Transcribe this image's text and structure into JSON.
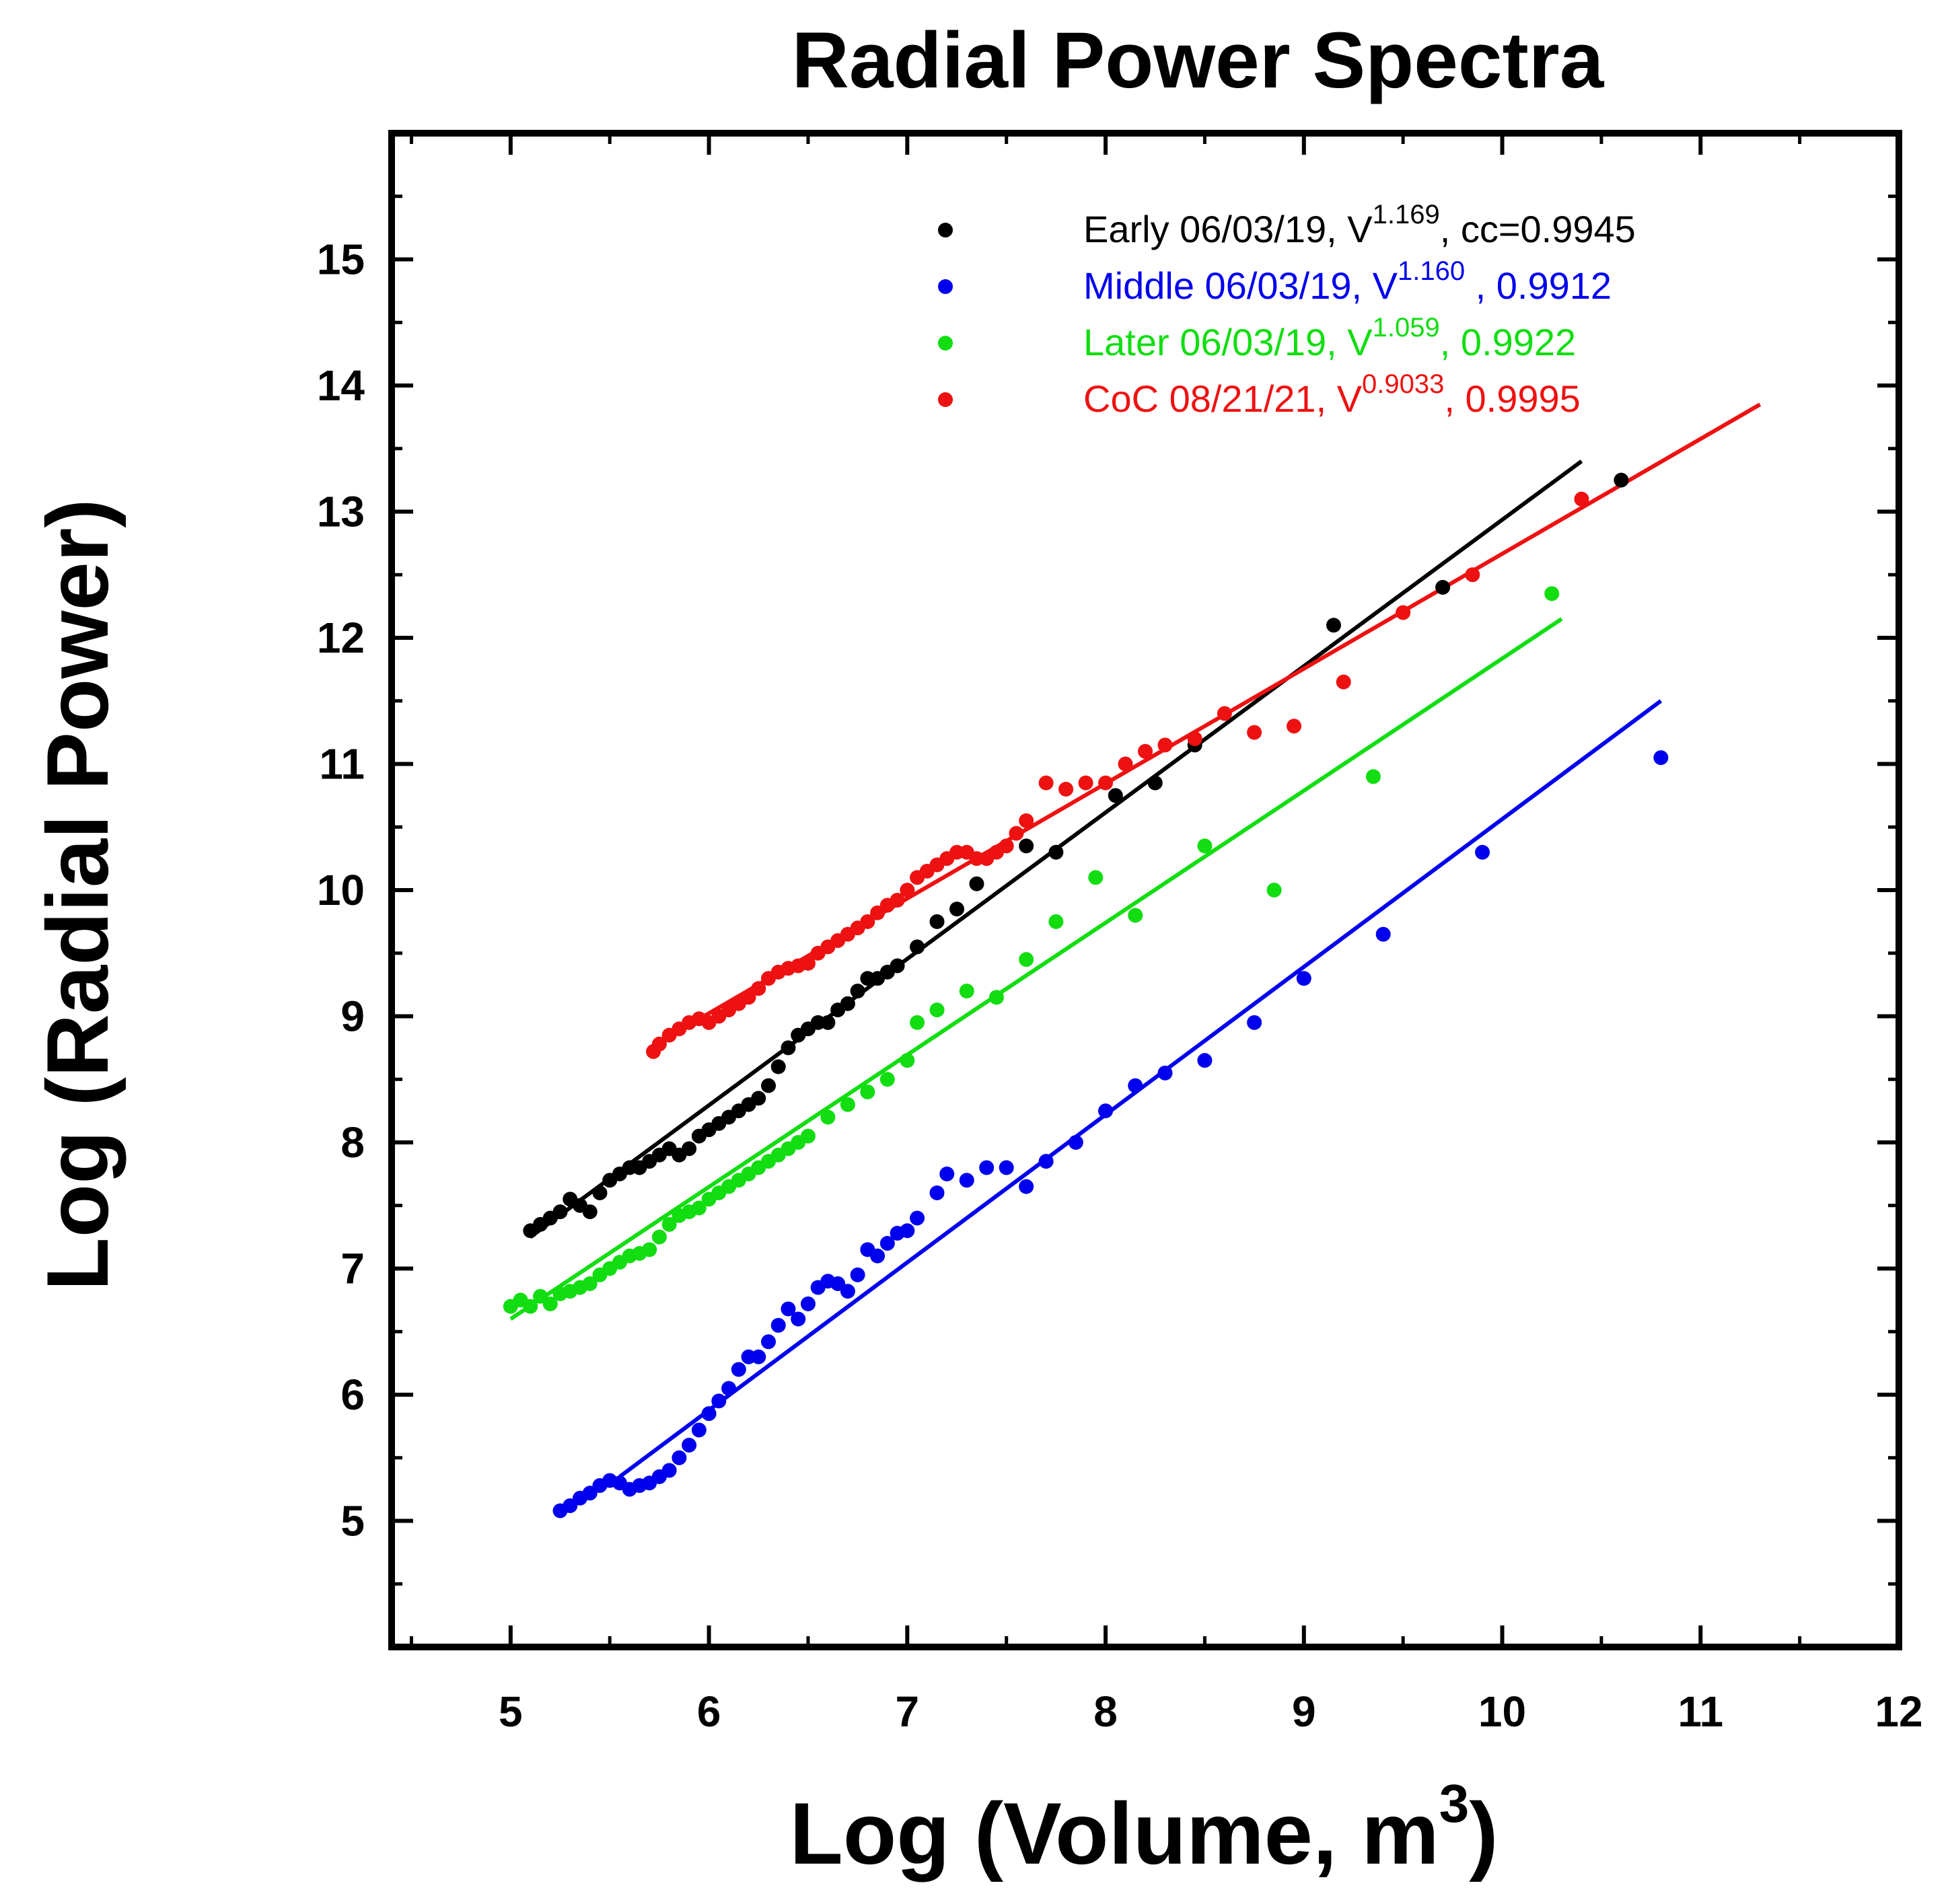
{
  "chart_data": {
    "type": "scatter",
    "title": "Radial Power Spectra",
    "xlabel": {
      "text": "Log (Volume, m",
      "sup": "3",
      "tail": ")"
    },
    "ylabel": "Log (Radial Power)",
    "xlim": [
      4.4,
      12
    ],
    "ylim": [
      4,
      16
    ],
    "x_ticks": [
      5,
      6,
      7,
      8,
      9,
      10,
      11,
      12
    ],
    "y_ticks": [
      5,
      6,
      7,
      8,
      9,
      10,
      11,
      12,
      13,
      14,
      15
    ],
    "legend_position": "top-right",
    "series": [
      {
        "name": "Early 06/03/19, V",
        "exponent": "1.169",
        "stat": ", cc=0.9945",
        "color": "#000000",
        "fit": [
          [
            5.1,
            7.25
          ],
          [
            10.4,
            13.4
          ]
        ],
        "points": [
          [
            5.1,
            7.3
          ],
          [
            5.15,
            7.35
          ],
          [
            5.2,
            7.4
          ],
          [
            5.25,
            7.45
          ],
          [
            5.3,
            7.55
          ],
          [
            5.35,
            7.5
          ],
          [
            5.4,
            7.45
          ],
          [
            5.45,
            7.6
          ],
          [
            5.5,
            7.7
          ],
          [
            5.55,
            7.75
          ],
          [
            5.6,
            7.8
          ],
          [
            5.65,
            7.8
          ],
          [
            5.7,
            7.85
          ],
          [
            5.75,
            7.9
          ],
          [
            5.8,
            7.95
          ],
          [
            5.85,
            7.9
          ],
          [
            5.9,
            7.95
          ],
          [
            5.95,
            8.05
          ],
          [
            6.0,
            8.1
          ],
          [
            6.05,
            8.15
          ],
          [
            6.1,
            8.2
          ],
          [
            6.15,
            8.25
          ],
          [
            6.2,
            8.3
          ],
          [
            6.25,
            8.35
          ],
          [
            6.3,
            8.45
          ],
          [
            6.35,
            8.6
          ],
          [
            6.4,
            8.75
          ],
          [
            6.45,
            8.85
          ],
          [
            6.5,
            8.9
          ],
          [
            6.55,
            8.95
          ],
          [
            6.6,
            8.95
          ],
          [
            6.65,
            9.05
          ],
          [
            6.7,
            9.1
          ],
          [
            6.75,
            9.2
          ],
          [
            6.8,
            9.3
          ],
          [
            6.85,
            9.3
          ],
          [
            6.9,
            9.35
          ],
          [
            6.95,
            9.4
          ],
          [
            7.05,
            9.55
          ],
          [
            7.15,
            9.75
          ],
          [
            7.25,
            9.85
          ],
          [
            7.35,
            10.05
          ],
          [
            7.6,
            10.35
          ],
          [
            7.75,
            10.3
          ],
          [
            8.05,
            10.75
          ],
          [
            8.25,
            10.85
          ],
          [
            8.45,
            11.15
          ],
          [
            9.15,
            12.1
          ],
          [
            9.7,
            12.4
          ],
          [
            10.6,
            13.25
          ]
        ]
      },
      {
        "name": "Middle 06/03/19, V",
        "exponent": "1.160",
        "stat": " ,  0.9912",
        "color": "#0000ee",
        "fit": [
          [
            5.55,
            5.35
          ],
          [
            10.8,
            11.5
          ]
        ],
        "points": [
          [
            5.25,
            5.08
          ],
          [
            5.3,
            5.12
          ],
          [
            5.35,
            5.18
          ],
          [
            5.4,
            5.22
          ],
          [
            5.45,
            5.28
          ],
          [
            5.5,
            5.32
          ],
          [
            5.55,
            5.3
          ],
          [
            5.6,
            5.25
          ],
          [
            5.65,
            5.28
          ],
          [
            5.7,
            5.3
          ],
          [
            5.75,
            5.35
          ],
          [
            5.8,
            5.4
          ],
          [
            5.85,
            5.5
          ],
          [
            5.9,
            5.6
          ],
          [
            5.95,
            5.72
          ],
          [
            6.0,
            5.85
          ],
          [
            6.05,
            5.95
          ],
          [
            6.1,
            6.05
          ],
          [
            6.15,
            6.2
          ],
          [
            6.2,
            6.3
          ],
          [
            6.25,
            6.3
          ],
          [
            6.3,
            6.42
          ],
          [
            6.35,
            6.55
          ],
          [
            6.4,
            6.68
          ],
          [
            6.45,
            6.6
          ],
          [
            6.5,
            6.72
          ],
          [
            6.55,
            6.85
          ],
          [
            6.6,
            6.9
          ],
          [
            6.65,
            6.88
          ],
          [
            6.7,
            6.82
          ],
          [
            6.75,
            6.95
          ],
          [
            6.8,
            7.15
          ],
          [
            6.85,
            7.1
          ],
          [
            6.9,
            7.2
          ],
          [
            6.95,
            7.28
          ],
          [
            7.0,
            7.3
          ],
          [
            7.05,
            7.4
          ],
          [
            7.15,
            7.6
          ],
          [
            7.2,
            7.75
          ],
          [
            7.3,
            7.7
          ],
          [
            7.4,
            7.8
          ],
          [
            7.5,
            7.8
          ],
          [
            7.6,
            7.65
          ],
          [
            7.7,
            7.85
          ],
          [
            7.85,
            8.0
          ],
          [
            8.0,
            8.25
          ],
          [
            8.15,
            8.45
          ],
          [
            8.3,
            8.55
          ],
          [
            8.5,
            8.65
          ],
          [
            8.75,
            8.95
          ],
          [
            9.0,
            9.3
          ],
          [
            9.4,
            9.65
          ],
          [
            9.9,
            10.3
          ],
          [
            10.8,
            11.05
          ]
        ]
      },
      {
        "name": "Later 06/03/19, V",
        "exponent": "1.059",
        "stat": ", 0.9922",
        "color": "#11dd11",
        "fit": [
          [
            5.0,
            6.6
          ],
          [
            10.3,
            12.15
          ]
        ],
        "points": [
          [
            5.0,
            6.7
          ],
          [
            5.05,
            6.75
          ],
          [
            5.1,
            6.7
          ],
          [
            5.15,
            6.78
          ],
          [
            5.2,
            6.72
          ],
          [
            5.25,
            6.8
          ],
          [
            5.3,
            6.82
          ],
          [
            5.35,
            6.85
          ],
          [
            5.4,
            6.88
          ],
          [
            5.45,
            6.95
          ],
          [
            5.5,
            7.0
          ],
          [
            5.55,
            7.05
          ],
          [
            5.6,
            7.1
          ],
          [
            5.65,
            7.12
          ],
          [
            5.7,
            7.15
          ],
          [
            5.75,
            7.25
          ],
          [
            5.8,
            7.35
          ],
          [
            5.85,
            7.42
          ],
          [
            5.9,
            7.45
          ],
          [
            5.95,
            7.48
          ],
          [
            6.0,
            7.55
          ],
          [
            6.05,
            7.6
          ],
          [
            6.1,
            7.65
          ],
          [
            6.15,
            7.7
          ],
          [
            6.2,
            7.75
          ],
          [
            6.25,
            7.8
          ],
          [
            6.3,
            7.85
          ],
          [
            6.35,
            7.9
          ],
          [
            6.4,
            7.95
          ],
          [
            6.45,
            8.0
          ],
          [
            6.5,
            8.05
          ],
          [
            6.6,
            8.2
          ],
          [
            6.7,
            8.3
          ],
          [
            6.8,
            8.4
          ],
          [
            6.9,
            8.5
          ],
          [
            7.0,
            8.65
          ],
          [
            7.05,
            8.95
          ],
          [
            7.15,
            9.05
          ],
          [
            7.3,
            9.2
          ],
          [
            7.45,
            9.15
          ],
          [
            7.6,
            9.45
          ],
          [
            7.75,
            9.75
          ],
          [
            7.95,
            10.1
          ],
          [
            8.15,
            9.8
          ],
          [
            8.5,
            10.35
          ],
          [
            8.85,
            10.0
          ],
          [
            9.35,
            10.9
          ],
          [
            10.25,
            12.35
          ]
        ]
      },
      {
        "name": "CoC 08/21/21, V",
        "exponent": "0.9033",
        "stat": ", 0.9995",
        "color": "#ee1111",
        "fit": [
          [
            5.7,
            8.75
          ],
          [
            11.3,
            13.85
          ]
        ],
        "points": [
          [
            5.72,
            8.72
          ],
          [
            5.75,
            8.78
          ],
          [
            5.8,
            8.85
          ],
          [
            5.85,
            8.9
          ],
          [
            5.9,
            8.95
          ],
          [
            5.95,
            8.98
          ],
          [
            6.0,
            8.95
          ],
          [
            6.05,
            9.0
          ],
          [
            6.1,
            9.05
          ],
          [
            6.15,
            9.1
          ],
          [
            6.2,
            9.15
          ],
          [
            6.25,
            9.22
          ],
          [
            6.3,
            9.3
          ],
          [
            6.35,
            9.35
          ],
          [
            6.4,
            9.38
          ],
          [
            6.45,
            9.4
          ],
          [
            6.5,
            9.42
          ],
          [
            6.55,
            9.5
          ],
          [
            6.6,
            9.55
          ],
          [
            6.65,
            9.6
          ],
          [
            6.7,
            9.65
          ],
          [
            6.75,
            9.7
          ],
          [
            6.8,
            9.75
          ],
          [
            6.85,
            9.82
          ],
          [
            6.9,
            9.88
          ],
          [
            6.95,
            9.92
          ],
          [
            7.0,
            10.0
          ],
          [
            7.05,
            10.1
          ],
          [
            7.1,
            10.15
          ],
          [
            7.15,
            10.2
          ],
          [
            7.2,
            10.25
          ],
          [
            7.25,
            10.3
          ],
          [
            7.3,
            10.3
          ],
          [
            7.35,
            10.25
          ],
          [
            7.4,
            10.25
          ],
          [
            7.45,
            10.3
          ],
          [
            7.5,
            10.35
          ],
          [
            7.55,
            10.45
          ],
          [
            7.6,
            10.55
          ],
          [
            7.7,
            10.85
          ],
          [
            7.8,
            10.8
          ],
          [
            7.9,
            10.85
          ],
          [
            8.0,
            10.85
          ],
          [
            8.1,
            11.0
          ],
          [
            8.2,
            11.1
          ],
          [
            8.3,
            11.15
          ],
          [
            8.45,
            11.2
          ],
          [
            8.6,
            11.4
          ],
          [
            8.75,
            11.25
          ],
          [
            8.95,
            11.3
          ],
          [
            9.2,
            11.65
          ],
          [
            9.5,
            12.2
          ],
          [
            9.85,
            12.5
          ],
          [
            10.4,
            13.1
          ]
        ]
      }
    ]
  }
}
